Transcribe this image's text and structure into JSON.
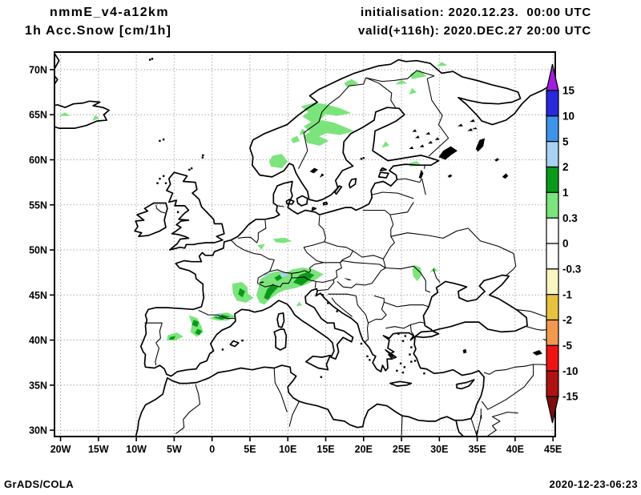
{
  "header": {
    "model": "nmmE_v4-a12km",
    "variable": "1h Acc.Snow [cm/1h]",
    "initialisation": "initialisation: 2020.12.23.  00:00 UTC",
    "valid": "valid(+116h): 2020.DEC.27 20:00 UTC"
  },
  "footer": {
    "left": "GrADS/COLA",
    "right": "2020-12-23-06:23"
  },
  "chart_data": {
    "type": "map",
    "title": "1h Acc.Snow [cm/1h]",
    "subtitle": "nmmE_v4-a12km",
    "region": "Europe",
    "projection": "latlon",
    "lon_range": [
      -20.8,
      45.3
    ],
    "lat_range": [
      29.3,
      71.95
    ],
    "grid": true,
    "x_tick_lons": [
      -20,
      -15,
      -10,
      -5,
      0,
      5,
      10,
      15,
      20,
      25,
      30,
      35,
      40,
      45
    ],
    "x_tick_labels": [
      "20W",
      "15W",
      "10W",
      "5W",
      "0",
      "5E",
      "10E",
      "15E",
      "20E",
      "25E",
      "30E",
      "35E",
      "40E",
      "45E"
    ],
    "y_tick_lats": [
      70,
      65,
      60,
      55,
      50,
      45,
      40,
      35,
      30
    ],
    "y_tick_labels": [
      "70N",
      "65N",
      "60N",
      "55N",
      "50N",
      "45N",
      "40N",
      "35N",
      "30N"
    ],
    "colorbar": {
      "unit": "cm/1h",
      "boundary_labels": [
        "15",
        "10",
        "5",
        "2",
        "1",
        "0.3",
        "0",
        "-0.3",
        "-1",
        "-2",
        "-5",
        "-10",
        "-15"
      ],
      "arrow_top_color": "#A01EDC",
      "arrow_bottom_color": "#7E0E0E",
      "segment_colors_top_to_bottom": [
        "#2828DC",
        "#3E94E8",
        "#A8D2F2",
        "#0A9A1A",
        "#7CE47C",
        "#FFFFFF",
        "#FFFFFF",
        "#FAF6C0",
        "#E8C23E",
        "#F2994E",
        "#EE1414",
        "#B01212"
      ]
    },
    "level_colors": {
      "0.3-1": "#7CE47C",
      "1-2": "#0A9A1A",
      "2-5": "#A8D2F2"
    },
    "snow_patches": [
      {
        "region": "iceland-west",
        "level": "0.3-1",
        "ring": [
          -22.7,
          65.0,
          -21.2,
          64.9,
          -21.5,
          65.2,
          -22.5,
          65.2
        ]
      },
      {
        "region": "iceland-central",
        "level": "0.3-1",
        "ring": [
          -20.1,
          64.9,
          -18.9,
          64.9,
          -19.4,
          65.2
        ]
      },
      {
        "region": "iceland-east",
        "level": "0.3-1",
        "ring": [
          -15.7,
          64.4,
          -15.0,
          64.6,
          -15.4,
          64.9
        ]
      },
      {
        "region": "central-scandinavia",
        "level": "0.3-1",
        "ring": [
          11.8,
          65.9,
          13.5,
          66.3,
          15.0,
          66.1,
          16.8,
          65.7,
          18.2,
          65.2,
          16.5,
          64.9,
          15.0,
          65.1,
          14.2,
          64.4,
          16.0,
          64.1,
          17.5,
          63.6,
          18.6,
          63.2,
          16.9,
          62.8,
          15.2,
          63.0,
          14.0,
          62.6,
          15.3,
          62.1,
          14.2,
          61.6,
          12.6,
          61.9,
          12.1,
          62.6,
          13.0,
          63.1,
          12.2,
          63.7,
          13.2,
          64.2,
          12.0,
          64.8,
          12.8,
          65.3
        ]
      },
      {
        "region": "southern-norway",
        "level": "0.3-1",
        "ring": [
          7.8,
          59.3,
          9.2,
          59.1,
          9.9,
          59.8,
          9.2,
          60.6,
          8.0,
          60.4,
          7.6,
          59.8
        ]
      },
      {
        "region": "norway-inland-1",
        "level": "0.3-1",
        "ring": [
          10.7,
          61.9,
          11.5,
          62.1,
          11.2,
          62.6,
          10.5,
          62.3
        ]
      },
      {
        "region": "norway-inland-2",
        "level": "0.3-1",
        "ring": [
          11.6,
          62.8,
          12.4,
          63.0,
          11.9,
          63.4
        ]
      },
      {
        "region": "lapland-1",
        "level": "0.3-1",
        "ring": [
          17.8,
          68.1,
          19.2,
          68.5,
          18.4,
          68.9,
          17.5,
          68.5
        ]
      },
      {
        "region": "lapland-2",
        "level": "0.3-1",
        "ring": [
          24.3,
          68.4,
          25.6,
          68.5,
          25.0,
          68.8
        ]
      },
      {
        "region": "lapland-3",
        "level": "0.3-1",
        "ring": [
          26.4,
          69.0,
          28.2,
          69.3,
          27.4,
          69.9,
          26.2,
          69.5
        ]
      },
      {
        "region": "murmansk-coast",
        "level": "0.3-1",
        "ring": [
          29.8,
          70.4,
          30.9,
          70.5,
          30.3,
          70.8
        ]
      },
      {
        "region": "finland-southwest",
        "level": "0.3-1",
        "ring": [
          22.5,
          61.4,
          23.3,
          61.6,
          22.9,
          62.0
        ]
      },
      {
        "region": "lapland-inner",
        "level": "0.3-1",
        "ring": [
          26.1,
          67.3,
          26.9,
          67.5,
          26.4,
          67.9
        ]
      },
      {
        "region": "estonia",
        "level": "0.3-1",
        "ring": [
          26.2,
          59.3,
          27.4,
          59.5,
          27.0,
          59.8,
          26.1,
          59.6
        ]
      },
      {
        "region": "germany-central",
        "level": "0.3-1",
        "ring": [
          8.2,
          51.2,
          9.6,
          51.3,
          10.4,
          51.0,
          9.4,
          50.8,
          8.4,
          50.9
        ]
      },
      {
        "region": "germany-west",
        "level": "0.3-1",
        "ring": [
          6.1,
          50.5,
          6.9,
          50.6,
          6.5,
          50.1
        ]
      },
      {
        "region": "massif-central",
        "level": "0.3-1",
        "ring": [
          2.7,
          46.2,
          3.9,
          46.4,
          4.6,
          45.9,
          4.7,
          45.1,
          5.4,
          44.7,
          4.5,
          44.2,
          3.3,
          44.4,
          2.8,
          45.2
        ]
      },
      {
        "region": "massif-central-core",
        "level": "1-2",
        "ring": [
          3.7,
          45.7,
          4.3,
          45.4,
          4.0,
          44.8,
          3.5,
          45.1
        ]
      },
      {
        "region": "alps",
        "level": "0.3-1",
        "ring": [
          6.3,
          44.2,
          5.9,
          45.0,
          6.2,
          45.9,
          6.4,
          46.7,
          7.3,
          47.3,
          8.6,
          47.6,
          9.8,
          47.4,
          10.6,
          47.8,
          12.0,
          48.0,
          13.4,
          47.8,
          14.6,
          47.3,
          13.6,
          46.7,
          12.4,
          46.2,
          11.0,
          45.8,
          9.6,
          45.6,
          8.6,
          45.2,
          7.6,
          44.6,
          6.9,
          44.0
        ]
      },
      {
        "region": "alps-east-core",
        "level": "1-2",
        "ring": [
          10.8,
          46.4,
          11.6,
          47.2,
          12.6,
          47.5,
          13.4,
          47.2,
          12.6,
          46.6,
          11.8,
          46.1
        ]
      },
      {
        "region": "alps-west-core",
        "level": "1-2",
        "ring": [
          6.9,
          44.7,
          7.3,
          45.6,
          8.0,
          46.2,
          8.7,
          45.9,
          7.9,
          45.2,
          7.4,
          44.5
        ]
      },
      {
        "region": "alps-central-core",
        "level": "1-2",
        "ring": [
          8.6,
          46.6,
          9.2,
          46.9,
          8.9,
          47.2,
          8.3,
          46.9
        ]
      },
      {
        "region": "alps-high-1",
        "level": "2-5",
        "ring": [
          9.2,
          47.0,
          10.0,
          47.2,
          9.7,
          47.5,
          9.0,
          47.3
        ]
      },
      {
        "region": "alps-high-2",
        "level": "2-5",
        "ring": [
          6.9,
          47.0,
          7.4,
          47.2,
          7.1,
          47.4
        ]
      },
      {
        "region": "apennines",
        "level": "0.3-1",
        "ring": [
          11.2,
          43.8,
          11.8,
          43.9,
          11.5,
          44.2
        ]
      },
      {
        "region": "pyrenees",
        "level": "0.3-1",
        "ring": [
          -0.2,
          42.4,
          0.8,
          42.9,
          2.0,
          43.0,
          3.0,
          42.6,
          2.0,
          42.2,
          0.8,
          42.2
        ]
      },
      {
        "region": "pyrenees-core",
        "level": "1-2",
        "ring": [
          0.4,
          42.5,
          1.3,
          42.8,
          2.2,
          42.6,
          1.3,
          42.3
        ]
      },
      {
        "region": "pyrenees-high",
        "level": "2-5",
        "ring": [
          0.7,
          42.6,
          1.2,
          42.7,
          1.0,
          42.9,
          0.6,
          42.8
        ]
      },
      {
        "region": "iberian-system",
        "level": "0.3-1",
        "ring": [
          -3.0,
          42.7,
          -2.0,
          42.4,
          -1.5,
          41.6,
          -1.2,
          40.9,
          -2.0,
          40.4,
          -2.8,
          40.9,
          -2.6,
          41.8
        ]
      },
      {
        "region": "iberian-core-1",
        "level": "1-2",
        "ring": [
          -2.4,
          42.2,
          -1.8,
          42.0,
          -2.0,
          41.5,
          -2.6,
          41.7
        ]
      },
      {
        "region": "iberian-core-2",
        "level": "1-2",
        "ring": [
          -1.9,
          41.2,
          -1.4,
          41.0,
          -1.7,
          40.6,
          -2.2,
          40.8
        ]
      },
      {
        "region": "sistema-central",
        "level": "0.3-1",
        "ring": [
          -5.8,
          40.5,
          -4.7,
          40.8,
          -3.9,
          40.4,
          -4.9,
          40.0,
          -5.9,
          40.0
        ]
      },
      {
        "region": "sistema-central-core",
        "level": "1-2",
        "ring": [
          -5.5,
          40.3,
          -4.9,
          40.4,
          -5.1,
          40.1,
          -5.6,
          40.1
        ]
      },
      {
        "region": "moldova",
        "level": "0.3-1",
        "ring": [
          26.7,
          48.3,
          27.5,
          48.0,
          27.6,
          47.2,
          27.1,
          46.6,
          26.6,
          47.1,
          26.5,
          47.8
        ]
      },
      {
        "region": "moldova-east",
        "level": "0.3-1",
        "ring": [
          28.9,
          47.6,
          29.7,
          47.7,
          29.3,
          48.0
        ]
      }
    ]
  }
}
